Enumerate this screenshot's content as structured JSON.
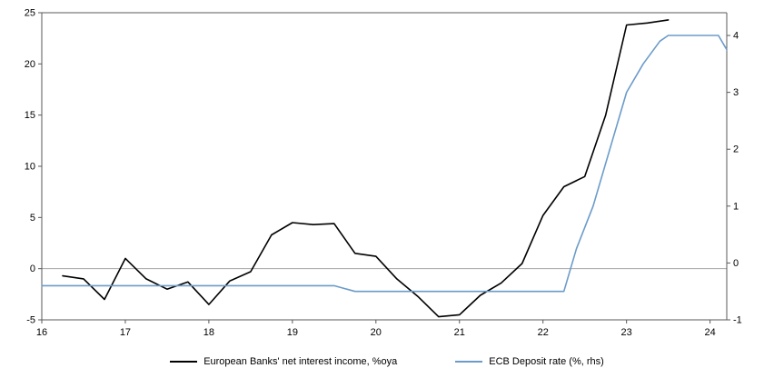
{
  "chart_data": {
    "type": "line",
    "title": "",
    "xlabel": "",
    "ylabel_left": "",
    "ylabel_right": "",
    "x_range": [
      16,
      24.2
    ],
    "ylim_left": [
      -5,
      25
    ],
    "ylim_right": [
      -1,
      4.4
    ],
    "xticks": [
      16,
      17,
      18,
      19,
      20,
      21,
      22,
      23,
      24
    ],
    "yticks_left": [
      -5,
      0,
      5,
      10,
      15,
      20,
      25
    ],
    "yticks_right": [
      -1,
      0,
      1,
      2,
      3,
      4
    ],
    "grid": "zero-line-only",
    "zero_line_color": "#a6a6a6",
    "frame_color": "#595959",
    "legend_position": "bottom-center",
    "series": [
      {
        "name": "European Banks' net interest income, %oya",
        "axis": "left",
        "color": "#000000",
        "x": [
          16.25,
          16.5,
          16.75,
          17.0,
          17.25,
          17.5,
          17.75,
          18.0,
          18.25,
          18.5,
          18.75,
          19.0,
          19.25,
          19.5,
          19.75,
          20.0,
          20.25,
          20.5,
          20.75,
          21.0,
          21.25,
          21.5,
          21.75,
          22.0,
          22.25,
          22.5,
          22.75,
          23.0,
          23.25,
          23.5
        ],
        "values": [
          -0.7,
          -1.0,
          -3.0,
          1.0,
          -1.0,
          -2.0,
          -1.3,
          -3.5,
          -1.2,
          -0.3,
          3.3,
          4.5,
          4.3,
          4.4,
          1.5,
          1.2,
          -1.0,
          -2.7,
          -4.7,
          -4.5,
          -2.6,
          -1.4,
          0.5,
          5.2,
          8.0,
          9.0,
          15.0,
          23.8,
          24.0,
          24.3
        ]
      },
      {
        "name": "ECB Deposit rate (%, rhs)",
        "axis": "right",
        "color": "#6B9BC9",
        "x": [
          16.0,
          16.25,
          16.5,
          16.75,
          17.0,
          17.25,
          17.5,
          17.75,
          18.0,
          18.25,
          18.5,
          18.75,
          19.0,
          19.25,
          19.5,
          19.75,
          20.0,
          20.25,
          20.5,
          20.75,
          21.0,
          21.25,
          21.5,
          21.75,
          22.0,
          22.25,
          22.4,
          22.6,
          22.8,
          23.0,
          23.2,
          23.4,
          23.5,
          23.75,
          24.0,
          24.1,
          24.2
        ],
        "values": [
          -0.4,
          -0.4,
          -0.4,
          -0.4,
          -0.4,
          -0.4,
          -0.4,
          -0.4,
          -0.4,
          -0.4,
          -0.4,
          -0.4,
          -0.4,
          -0.4,
          -0.4,
          -0.5,
          -0.5,
          -0.5,
          -0.5,
          -0.5,
          -0.5,
          -0.5,
          -0.5,
          -0.5,
          -0.5,
          -0.5,
          0.25,
          1.0,
          2.0,
          3.0,
          3.5,
          3.9,
          4.0,
          4.0,
          4.0,
          4.0,
          3.75
        ]
      }
    ]
  }
}
